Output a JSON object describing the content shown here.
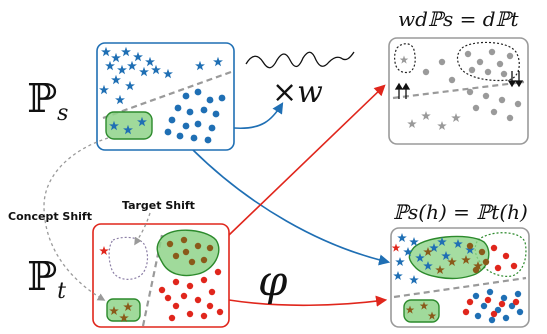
{
  "labels": {
    "source_dist": "ℙ",
    "source_sub": "s",
    "target_dist": "ℙ",
    "target_sub": "t",
    "weight_op": "×w",
    "feature_map": "φ",
    "importance_eq": "wdℙs = dℙt",
    "invariance_eq": "ℙs(h) = ℙt(h)",
    "concept_shift": "Concept Shift",
    "target_shift": "Target Shift"
  },
  "colors": {
    "blue": "#1f6fb4",
    "red": "#e0261c",
    "brown": "#8a5a1a",
    "green_fill": "#8fd48a",
    "green_stroke": "#2c8a2c",
    "gray": "#9a9a9a",
    "dark_gray": "#555555"
  }
}
